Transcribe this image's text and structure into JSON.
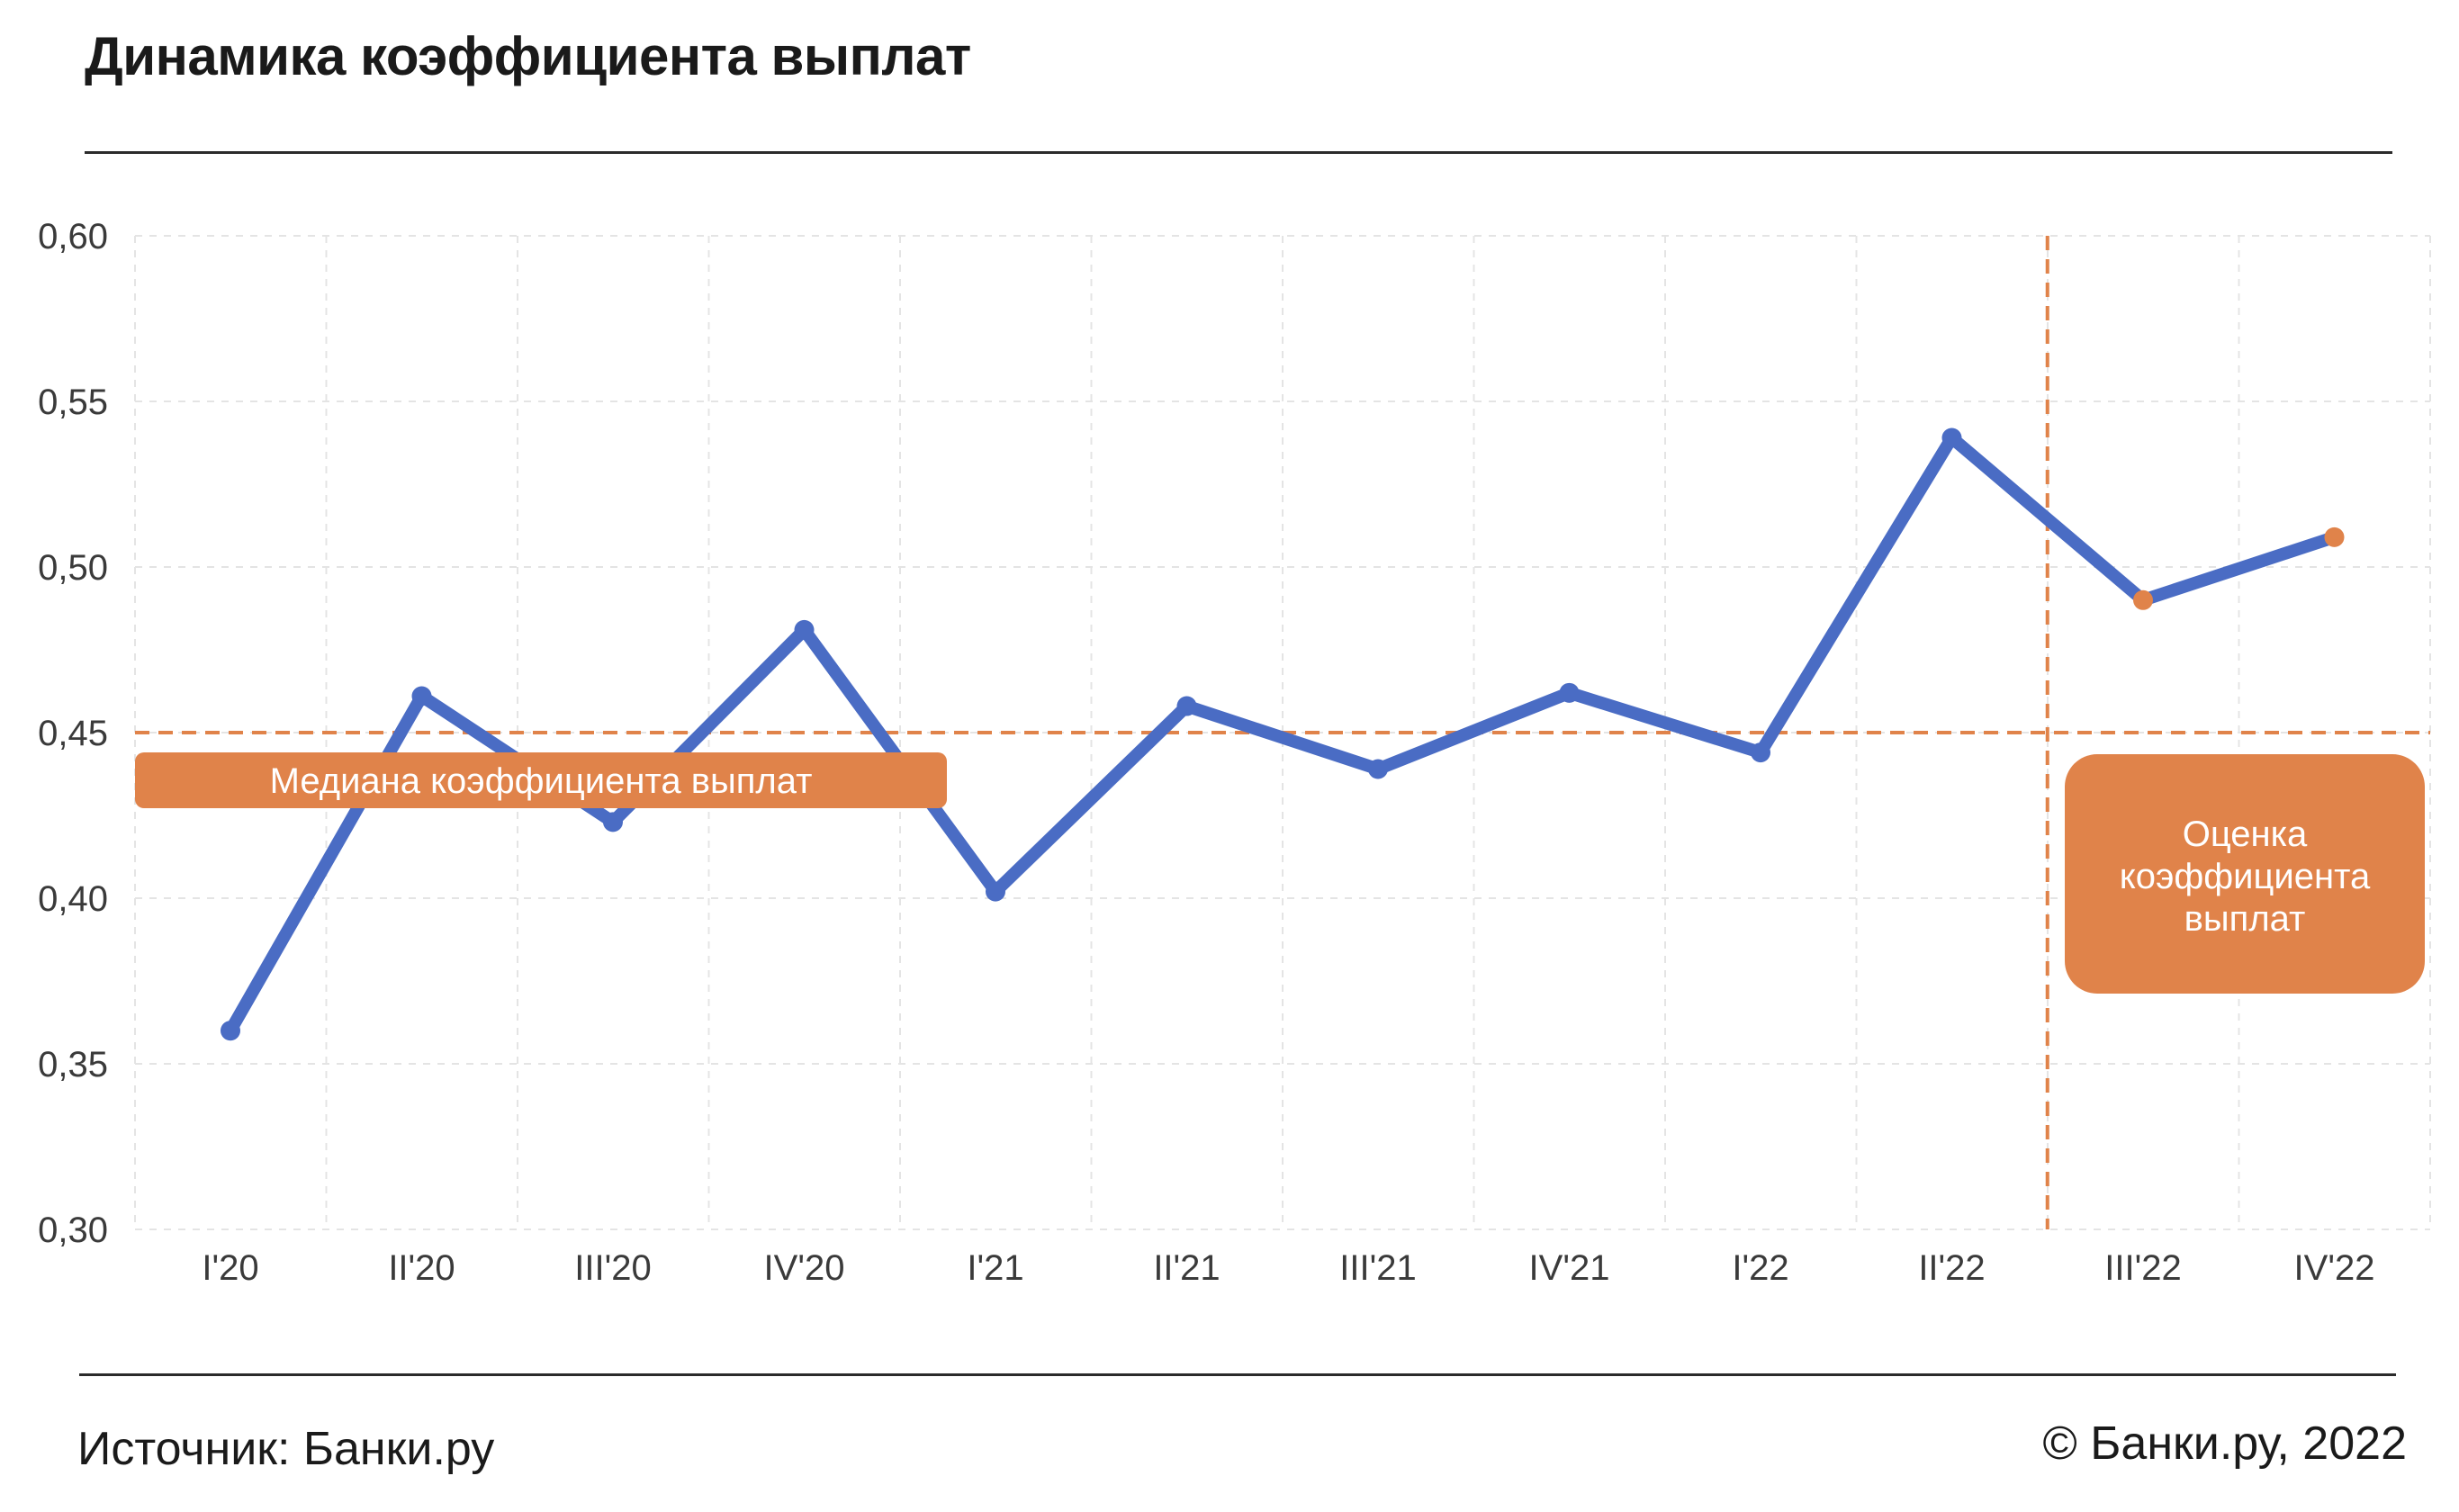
{
  "title": "Динамика коэффициента выплат",
  "footer": {
    "source": "Источник: Банки.ру",
    "copyright": "© Банки.ру, 2022"
  },
  "colors": {
    "line": "#4a6cc4",
    "accent": "#e0834a",
    "grid": "#e4e4e4"
  },
  "chart_data": {
    "type": "line",
    "title": "Динамика коэффициента выплат",
    "categories": [
      "I'20",
      "II'20",
      "III'20",
      "IV'20",
      "I'21",
      "II'21",
      "III'21",
      "IV'21",
      "I'22",
      "II'22",
      "III'22",
      "IV'22"
    ],
    "yticks": [
      "0,30",
      "0,35",
      "0,40",
      "0,45",
      "0,50",
      "0,55",
      "0,60"
    ],
    "ylim": [
      0.3,
      0.6
    ],
    "grid": true,
    "series": [
      {
        "values": [
          0.36,
          0.461,
          0.423,
          0.481,
          0.402,
          0.458,
          0.439,
          0.462,
          0.444,
          0.539,
          0.49,
          0.509
        ],
        "estimated_from_index": 10
      }
    ],
    "median": {
      "value": 0.45,
      "label": "Медиана коэффициента выплат"
    },
    "estimate_region": {
      "label_lines": [
        "Оценка",
        "коэффициента",
        "выплат"
      ]
    }
  }
}
